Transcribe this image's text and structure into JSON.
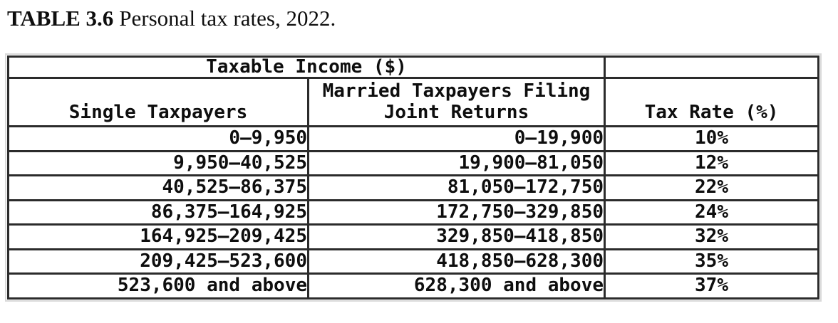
{
  "caption": {
    "label": "TABLE 3.6",
    "text": "Personal tax rates, 2022."
  },
  "table": {
    "group_header": "Taxable Income ($)",
    "columns": {
      "single": "Single Taxpayers",
      "married": "Married Taxpayers Filing\nJoint Returns",
      "rate": "Tax Rate (%)"
    },
    "rows": [
      {
        "single": "0—9,950",
        "married": "0—19,900",
        "rate": "10%"
      },
      {
        "single": "9,950—40,525",
        "married": "19,900—81,050",
        "rate": "12%"
      },
      {
        "single": "40,525—86,375",
        "married": "81,050—172,750",
        "rate": "22%"
      },
      {
        "single": "86,375—164,925",
        "married": "172,750—329,850",
        "rate": "24%"
      },
      {
        "single": "164,925—209,425",
        "married": "329,850—418,850",
        "rate": "32%"
      },
      {
        "single": "209,425—523,600",
        "married": "418,850—628,300",
        "rate": "35%"
      },
      {
        "single": "523,600 and above",
        "married": "628,300 and above",
        "rate": "37%"
      }
    ]
  },
  "colors": {
    "text": "#0e0e0e",
    "border": "#2b2b2b",
    "ghost_line": "#d9d9d9",
    "background": "#ffffff"
  }
}
